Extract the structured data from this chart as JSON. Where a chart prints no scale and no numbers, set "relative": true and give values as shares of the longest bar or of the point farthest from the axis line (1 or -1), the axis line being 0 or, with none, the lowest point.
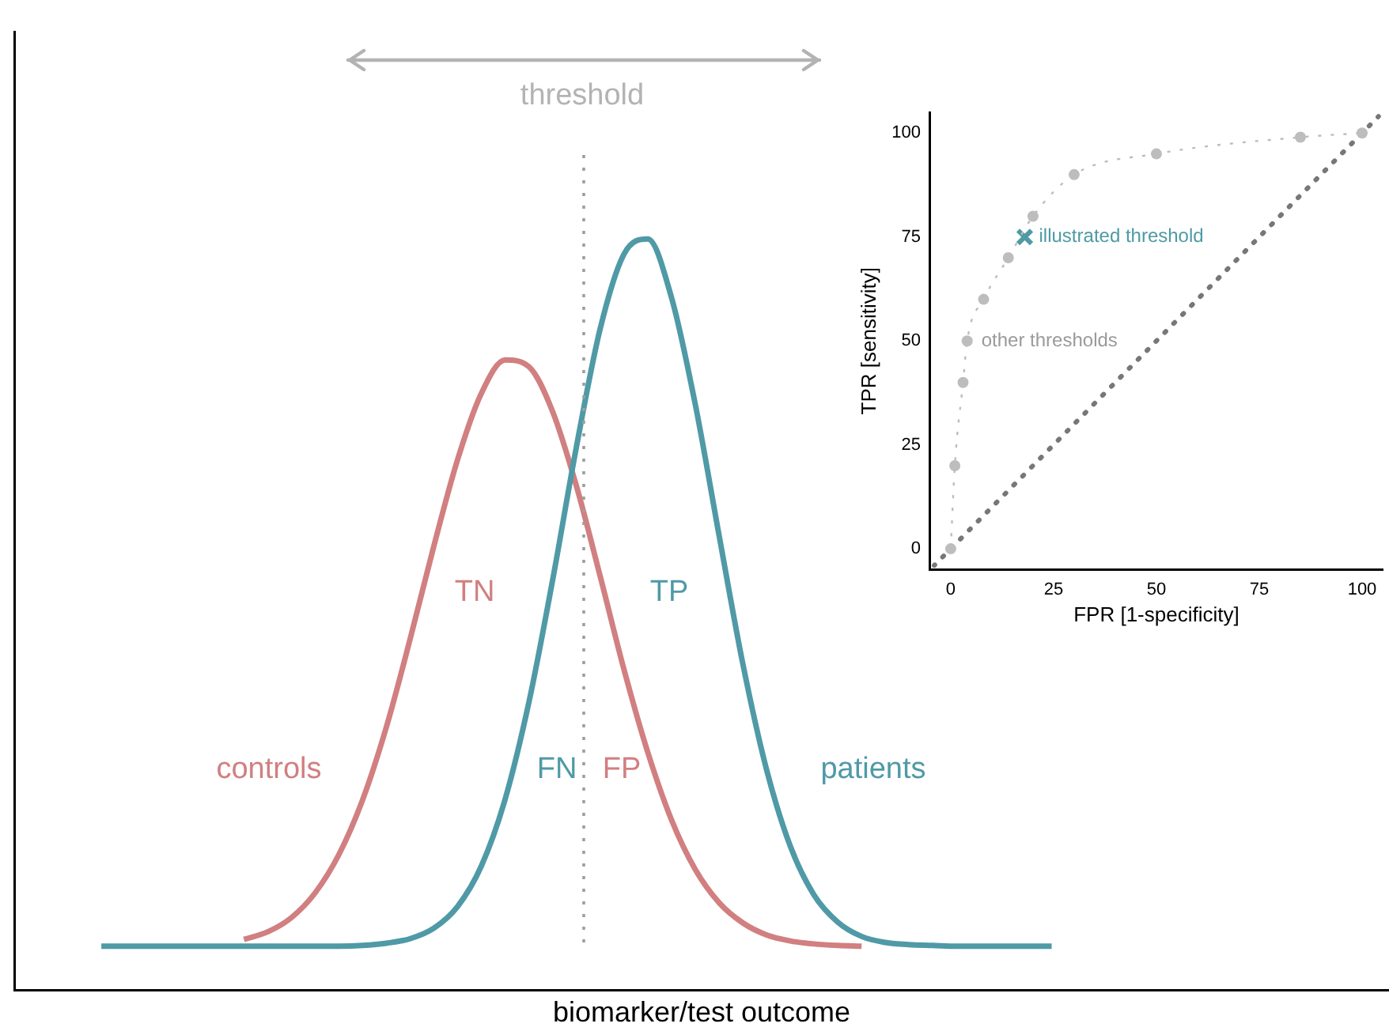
{
  "chart_data": [
    {
      "type": "line",
      "xlabel": "biomarker/test outcome",
      "relative": true,
      "tick_labels": false,
      "grid": false,
      "legend": false,
      "marker": "none",
      "line_style": "solid",
      "categories": [
        null,
        null,
        null,
        null,
        null,
        null,
        null,
        null,
        null,
        null,
        null,
        null,
        null,
        null,
        null,
        null,
        null,
        null,
        null,
        null,
        null,
        null,
        null,
        null,
        null,
        null,
        null,
        null,
        null,
        null,
        null,
        null,
        null,
        null,
        null,
        null,
        null,
        null,
        null,
        null,
        null
      ],
      "series": [
        {
          "name": "controls",
          "color": "#d17f80",
          "values": [
            null,
            null,
            null,
            null,
            null,
            null,
            0.068,
            0.078,
            0.097,
            0.13,
            0.181,
            0.254,
            0.351,
            0.468,
            0.592,
            0.707,
            0.795,
            0.839,
            0.83,
            0.77,
            0.671,
            0.551,
            0.427,
            0.317,
            0.227,
            0.161,
            0.117,
            0.09,
            0.074,
            0.066,
            0.062,
            0.06,
            0.059,
            null,
            null,
            null,
            null,
            null,
            null,
            null,
            null
          ]
        },
        {
          "name": "patients",
          "color": "#4f9aa6",
          "values": [
            0.059,
            0.059,
            0.059,
            0.059,
            0.059,
            0.059,
            0.059,
            0.059,
            0.059,
            0.059,
            0.059,
            0.06,
            0.063,
            0.069,
            0.083,
            0.112,
            0.166,
            0.255,
            0.384,
            0.547,
            0.724,
            0.881,
            0.98,
            1,
            0.922,
            0.78,
            0.606,
            0.435,
            0.294,
            0.192,
            0.127,
            0.091,
            0.072,
            0.064,
            0.061,
            0.06,
            0.059,
            0.059,
            0.059,
            0.059,
            0.059
          ]
        }
      ],
      "annotations": [
        "threshold",
        "TN",
        "TP",
        "FN",
        "FP"
      ]
    },
    {
      "type": "scatter",
      "xlabel": "FPR [1-specificity]",
      "ylabel": "TPR [sensitivity]",
      "grid": false,
      "legend": false,
      "xlim": [
        -5,
        105
      ],
      "ylim": [
        -5,
        105
      ],
      "xticks": [
        0,
        25,
        50,
        75,
        100
      ],
      "yticks": [
        0,
        25,
        50,
        75,
        100
      ],
      "series": [
        {
          "type": "line",
          "color": "#bdbdbd",
          "marker": "circle",
          "line_style": "dotted",
          "x": [
            0,
            1,
            3,
            4,
            8,
            14,
            20,
            30,
            50,
            85,
            100
          ],
          "values": [
            0,
            20,
            40,
            50,
            60,
            70,
            80,
            90,
            95,
            99,
            100
          ]
        },
        {
          "type": "scatter",
          "color": "#4e9aa5",
          "marker": "cross",
          "x": [
            18
          ],
          "values": [
            75
          ]
        },
        {
          "type": "line",
          "color": "#777777",
          "marker": "none",
          "line_style": "dotted",
          "x": [
            -4,
            104
          ],
          "values": [
            -4,
            104
          ]
        }
      ],
      "annotations": [
        {
          "text": "illustrated threshold",
          "x": 18,
          "y": 75
        },
        {
          "text": "other thresholds",
          "x": 4,
          "y": 50
        }
      ]
    }
  ]
}
